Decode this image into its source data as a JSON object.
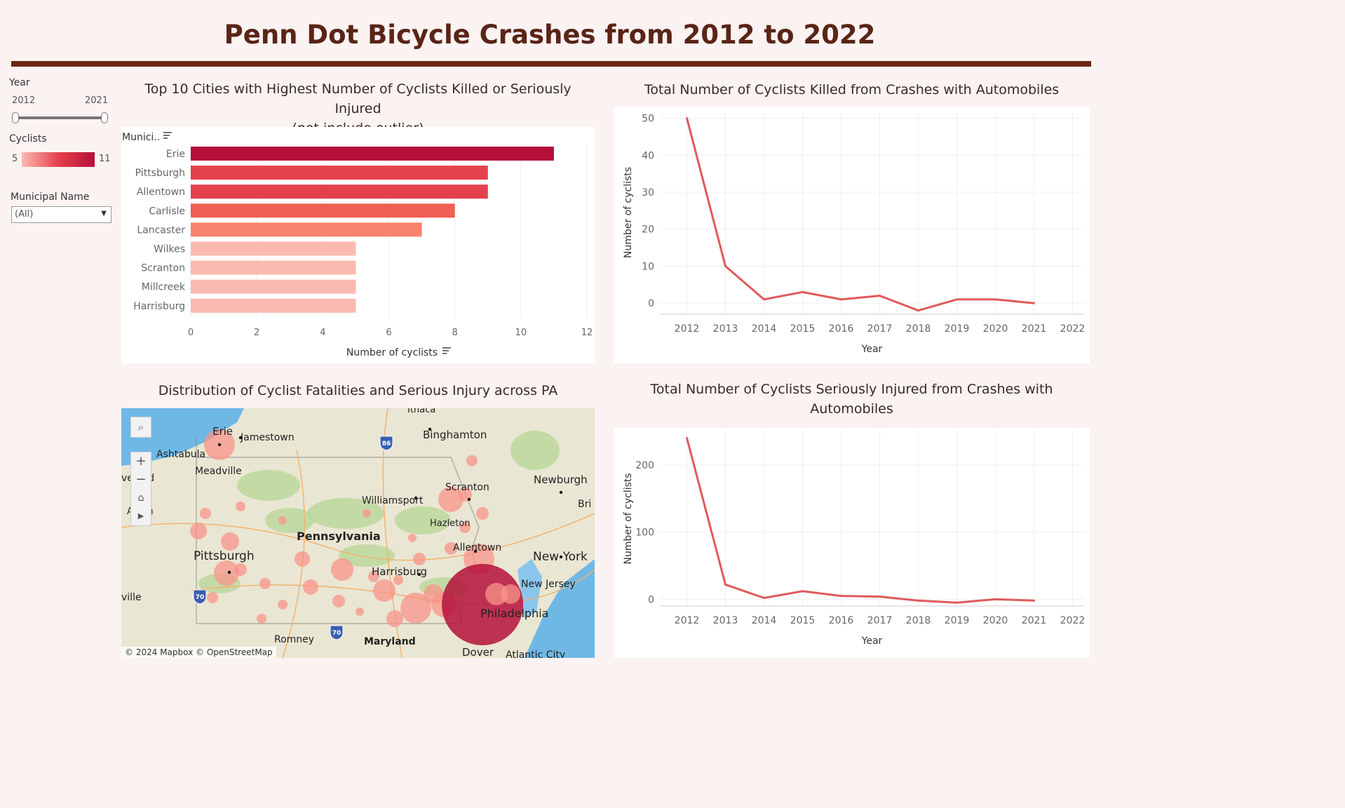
{
  "page": {
    "title": "Penn Dot Bicycle Crashes from 2012 to 2022"
  },
  "filters": {
    "year_label": "Year",
    "year_min": "2012",
    "year_max": "2021",
    "cyclists_label": "Cyclists",
    "cyclists_min": "5",
    "cyclists_max": "11",
    "municipal_label": "Municipal Name",
    "municipal_value": "(All)"
  },
  "bar_panel": {
    "title_line1": "Top 10 Cities with Highest Number of Cyclists Killed or Seriously Injured",
    "title_line2": "(not include outlier)",
    "row_header": "Munici.."
  },
  "line1_panel": {
    "title": "Total Number of Cyclists Killed from Crashes with Automobiles"
  },
  "map_panel": {
    "title": "Distribution of Cyclist Fatalities and Serious Injury across PA",
    "attribution": "© 2024 Mapbox  © OpenStreetMap",
    "places": [
      "Erie",
      "Jamestown",
      "Binghamton",
      "Ashtabula",
      "Meadville",
      "Williamsport",
      "Scranton",
      "Newburgh",
      "Pennsylvania",
      "Hazleton",
      "Allentown",
      "Pittsburgh",
      "New York",
      "Harrisburg",
      "New Jersey",
      "Philadelphia",
      "Romney",
      "Maryland",
      "Dover",
      "Atlantic City",
      "Ithaca",
      "Akron",
      "veland",
      "ville",
      "Bri"
    ]
  },
  "line2_panel": {
    "title_line1": "Total Number of Cyclists Seriously Injured from Crashes with",
    "title_line2": "Automobiles"
  },
  "colors": {
    "accent": "#6b2613",
    "line": "#e05a5a",
    "bar_max": "#b5103a"
  },
  "chart_data": [
    {
      "type": "bar",
      "title": "Top 10 Cities with Highest Number of Cyclists Killed or Seriously Injured (not include outlier)",
      "categories": [
        "Erie",
        "Pittsburgh",
        "Allentown",
        "Carlisle",
        "Lancaster",
        "Wilkes",
        "Scranton",
        "Millcreek",
        "Harrisburg"
      ],
      "values": [
        11,
        9,
        9,
        8,
        7,
        5,
        5,
        5,
        5
      ],
      "colors": [
        "#b5103a",
        "#e5414c",
        "#e5414c",
        "#f06052",
        "#f8836c",
        "#fbbab0",
        "#fbbab0",
        "#fbbab0",
        "#fbbab0"
      ],
      "xlabel": "Number of cyclists",
      "ylabel": "Munici..",
      "xlim": [
        0,
        12
      ],
      "xticks": [
        0,
        2,
        4,
        6,
        8,
        10,
        12
      ],
      "grid": true
    },
    {
      "type": "line",
      "title": "Total Number of Cyclists Killed from Crashes with Automobiles",
      "x": [
        2012,
        2013,
        2014,
        2015,
        2016,
        2017,
        2018,
        2019,
        2020,
        2021
      ],
      "values": [
        50,
        10,
        1,
        3,
        1,
        2,
        -2,
        1,
        1,
        0
      ],
      "xticks": [
        2012,
        2013,
        2014,
        2015,
        2016,
        2017,
        2018,
        2019,
        2020,
        2021,
        2022
      ],
      "yticks": [
        0,
        10,
        20,
        30,
        40,
        50
      ],
      "xlabel": "Year",
      "ylabel": "Number of cyclists",
      "ylim": [
        -3,
        52
      ],
      "xlim": [
        2011.3,
        2022.3
      ]
    },
    {
      "type": "line",
      "title": "Total Number of Cyclists Seriously Injured from Crashes with Automobiles",
      "x": [
        2012,
        2013,
        2014,
        2015,
        2016,
        2017,
        2018,
        2019,
        2020,
        2021
      ],
      "values": [
        240,
        22,
        2,
        12,
        5,
        4,
        -2,
        -5,
        0,
        -2
      ],
      "xticks": [
        2012,
        2013,
        2014,
        2015,
        2016,
        2017,
        2018,
        2019,
        2020,
        2021,
        2022
      ],
      "yticks": [
        0,
        100,
        200
      ],
      "xlabel": "Year",
      "ylabel": "Number of cyclists",
      "ylim": [
        -10,
        250
      ],
      "xlim": [
        2011.3,
        2022.3
      ]
    }
  ]
}
